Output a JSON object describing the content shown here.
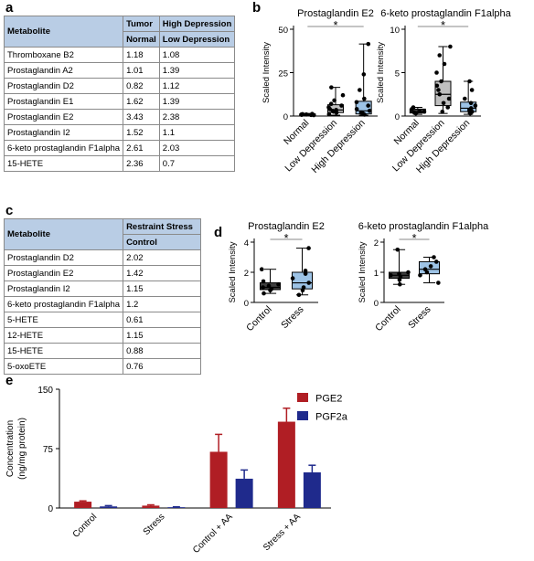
{
  "panels": {
    "a": "a",
    "b": "b",
    "c": "c",
    "d": "d",
    "e": "e"
  },
  "table_a": {
    "header1": [
      "Metabolite",
      "Tumor",
      "High Depression"
    ],
    "header2": [
      "Normal",
      "Low Depression"
    ],
    "rows": [
      [
        "Thromboxane B2",
        "1.18",
        "1.08"
      ],
      [
        "Prostaglandin A2",
        "1.01",
        "1.39"
      ],
      [
        "Prostaglandin D2",
        "0.82",
        "1.12"
      ],
      [
        "Prostaglandin E1",
        "1.62",
        "1.39"
      ],
      [
        "Prostaglandin E2",
        "3.43",
        "2.38"
      ],
      [
        "Prostaglandin I2",
        "1.52",
        "1.1"
      ],
      [
        "6-keto prostaglandin F1alpha",
        "2.61",
        "2.03"
      ],
      [
        "15-HETE",
        "2.36",
        "0.7"
      ]
    ]
  },
  "table_c": {
    "header1": [
      "Metabolite",
      "Restraint Stress"
    ],
    "header2": [
      "Control"
    ],
    "rows": [
      [
        "Prostaglandin D2",
        "2.02"
      ],
      [
        "Prostaglandin E2",
        "1.42"
      ],
      [
        "Prostaglandin I2",
        "1.15"
      ],
      [
        "6-keto prostaglandin F1alpha",
        "1.2"
      ],
      [
        "5-HETE",
        "0.61"
      ],
      [
        "12-HETE",
        "1.15"
      ],
      [
        "15-HETE",
        "0.88"
      ],
      [
        "5-oxoETE",
        "0.76"
      ]
    ]
  },
  "chart_data": [
    {
      "id": "b1",
      "type": "box",
      "title": "Prostaglandin E2",
      "ylabel": "Scaled Intensity",
      "ylim": [
        0,
        50
      ],
      "yticks": [
        0,
        25,
        50
      ],
      "significance": "*",
      "categories": [
        "Normal",
        "Low Depression",
        "High Depression"
      ],
      "boxes": [
        {
          "min": 0.3,
          "q1": 0.5,
          "median": 0.8,
          "q3": 1.2,
          "max": 1.5,
          "fill": "#404040"
        },
        {
          "min": 0.5,
          "q1": 2.0,
          "median": 3.5,
          "q3": 6.5,
          "max": 16.5,
          "fill": "#bfbfbf"
        },
        {
          "min": 0.5,
          "q1": 1.2,
          "median": 3.0,
          "q3": 8.5,
          "max": 41.5,
          "fill": "#9dc3e6"
        }
      ],
      "points": [
        [
          0.5,
          0.6,
          0.8,
          0.9,
          1.0,
          1.1,
          1.2,
          0.7
        ],
        [
          1.0,
          2.0,
          2.5,
          3.0,
          3.5,
          4.0,
          5.0,
          6.0,
          7.0,
          9.0,
          12.0,
          16.5
        ],
        [
          0.8,
          1.5,
          2.0,
          3.0,
          4.0,
          6.0,
          8.0,
          10.0,
          15.0,
          24.0,
          41.5
        ]
      ]
    },
    {
      "id": "b2",
      "type": "box",
      "title": "6-keto prostaglandin F1alpha",
      "ylabel": "Scaled Intensity",
      "ylim": [
        0,
        10
      ],
      "yticks": [
        0,
        5,
        10
      ],
      "significance": "*",
      "categories": [
        "Normal",
        "Low Depression",
        "High Depression"
      ],
      "boxes": [
        {
          "min": 0.2,
          "q1": 0.35,
          "median": 0.5,
          "q3": 0.8,
          "max": 1.0,
          "fill": "#404040"
        },
        {
          "min": 0.3,
          "q1": 1.2,
          "median": 2.5,
          "q3": 4.0,
          "max": 8.0,
          "fill": "#bfbfbf"
        },
        {
          "min": 0.2,
          "q1": 0.5,
          "median": 0.9,
          "q3": 1.6,
          "max": 4.0,
          "fill": "#9dc3e6"
        }
      ],
      "points": [
        [
          0.3,
          0.4,
          0.5,
          0.6,
          0.8,
          1.0
        ],
        [
          0.5,
          1.0,
          1.5,
          2.0,
          2.5,
          3.0,
          3.5,
          4.0,
          5.0,
          6.0,
          7.0,
          8.0
        ],
        [
          0.3,
          0.5,
          0.7,
          0.9,
          1.2,
          1.5,
          2.0,
          3.0,
          4.0
        ]
      ]
    },
    {
      "id": "d1",
      "type": "box",
      "title": "Prostaglandin E2",
      "ylabel": "Scaled Intensity",
      "ylim": [
        0,
        4
      ],
      "yticks": [
        0,
        2,
        4
      ],
      "significance": "*",
      "categories": [
        "Control",
        "Stress"
      ],
      "boxes": [
        {
          "min": 0.6,
          "q1": 0.85,
          "median": 1.0,
          "q3": 1.3,
          "max": 2.2,
          "fill": "#404040"
        },
        {
          "min": 0.5,
          "q1": 0.9,
          "median": 1.3,
          "q3": 2.0,
          "max": 3.6,
          "fill": "#9dc3e6"
        }
      ],
      "points": [
        [
          0.6,
          0.8,
          0.9,
          1.0,
          1.1,
          1.2,
          1.4,
          2.2
        ],
        [
          0.5,
          0.8,
          1.0,
          1.3,
          1.6,
          1.9,
          2.1,
          3.6
        ]
      ]
    },
    {
      "id": "d2",
      "type": "box",
      "title": "6-keto prostaglandin F1alpha",
      "ylabel": "Scaled Intensity",
      "ylim": [
        0,
        2
      ],
      "yticks": [
        0,
        1,
        2
      ],
      "significance": "*",
      "categories": [
        "Control",
        "Stress"
      ],
      "boxes": [
        {
          "min": 0.6,
          "q1": 0.8,
          "median": 0.9,
          "q3": 1.0,
          "max": 1.75,
          "fill": "#404040"
        },
        {
          "min": 0.65,
          "q1": 0.95,
          "median": 1.1,
          "q3": 1.35,
          "max": 1.5,
          "fill": "#9dc3e6"
        }
      ],
      "points": [
        [
          0.6,
          0.75,
          0.85,
          0.9,
          0.95,
          1.0,
          1.75
        ],
        [
          0.65,
          0.9,
          1.0,
          1.1,
          1.2,
          1.35,
          1.5
        ]
      ]
    },
    {
      "id": "e",
      "type": "bar",
      "ylabel": "Concentration\n(ng/mg protein)",
      "ylim": [
        0,
        150
      ],
      "yticks": [
        0,
        75,
        150
      ],
      "categories": [
        "Control",
        "Stress",
        "Control + AA",
        "Stress + AA"
      ],
      "series": [
        {
          "name": "PGE2",
          "color": "#b01e24",
          "values": [
            8,
            3,
            71,
            109
          ],
          "errors": [
            1,
            1,
            22,
            17
          ]
        },
        {
          "name": "PGF2a",
          "color": "#1f2a8c",
          "values": [
            2,
            1,
            37,
            45
          ],
          "errors": [
            1,
            0.5,
            11,
            9
          ]
        }
      ],
      "legend": "top-right"
    }
  ]
}
